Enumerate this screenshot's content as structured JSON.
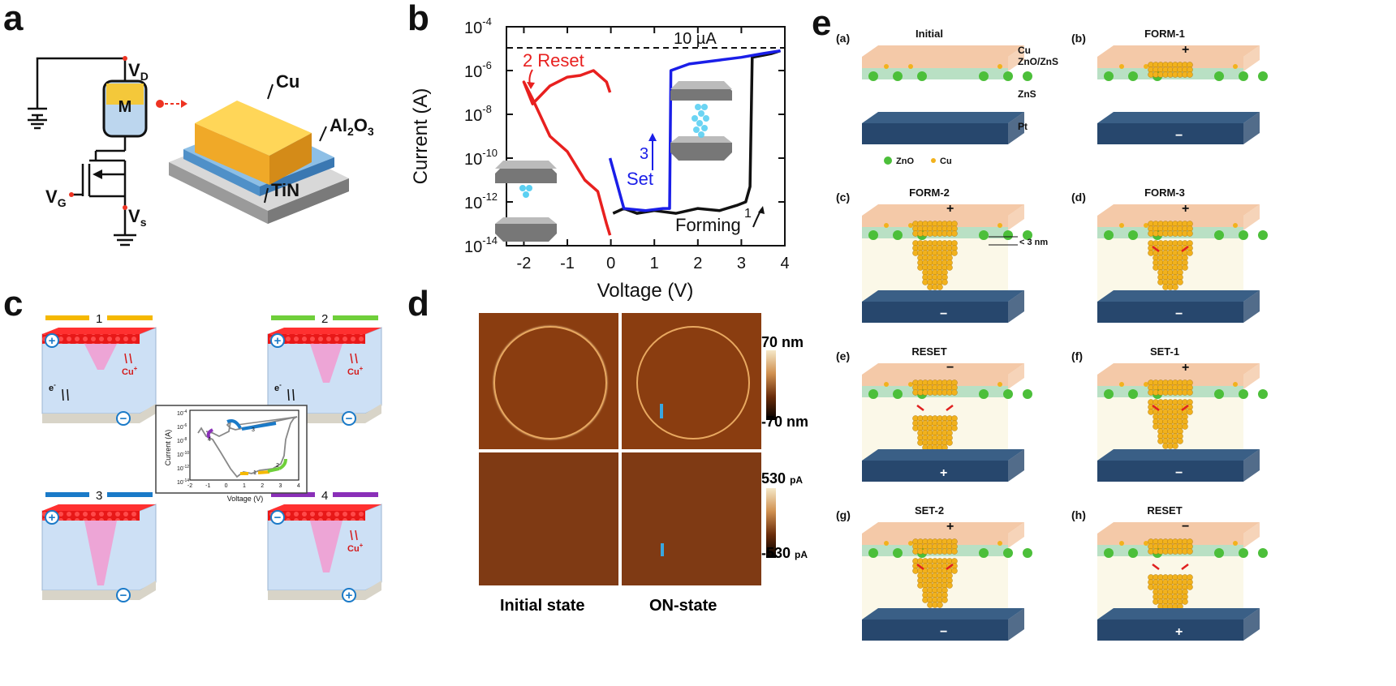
{
  "panels": {
    "a": "a",
    "b": "b",
    "c": "c",
    "d": "d",
    "e": "e"
  },
  "a": {
    "vd": "V",
    "vd_sub": "D",
    "vg": "V",
    "vg_sub": "G",
    "vs": "V",
    "vs_sub": "s",
    "m": "M",
    "cu": "Cu",
    "al": "Al",
    "al_sub": "2",
    "al_o": "O",
    "al_sub2": "3",
    "tin": "TiN"
  },
  "b": {
    "ylabel": "Current (A)",
    "xlabel": "Voltage (V)",
    "yticks": [
      "10",
      "10",
      "10",
      "10",
      "10",
      "10"
    ],
    "yexps": [
      "-4",
      "-6",
      "-8",
      "-10",
      "-12",
      "-14"
    ],
    "xticks": [
      "-2",
      "-1",
      "0",
      "1",
      "2",
      "3",
      "4"
    ],
    "compliance": "10 µA",
    "reset_num": "2",
    "reset": "Reset",
    "set_num": "3",
    "set": "Set",
    "forming_num": "1",
    "forming": "Forming"
  },
  "c": {
    "box1": "1",
    "box2": "2",
    "box3": "3",
    "box4": "4",
    "cu_plus": "Cu",
    "cu_plus_sup": "+",
    "e_minus": "e",
    "e_minus_sup": "-",
    "cu_plus2": "Cu",
    "cu_plus2_sup": "+",
    "cu_plus3": "Cu",
    "cu_plus3_sup": "+",
    "inset_ylabel": "Current (A)",
    "inset_xlabel": "Voltage (V)",
    "inset_xticks": [
      "-2",
      "-1",
      "0",
      "1",
      "2",
      "3",
      "4"
    ],
    "inset_yexps": [
      "-4",
      "-6",
      "-8",
      "-10",
      "-12",
      "-14"
    ],
    "inset_ytick": "10",
    "inset_nums": [
      "1",
      "2",
      "3",
      "4"
    ]
  },
  "d": {
    "scale_top_max": "70 nm",
    "scale_top_min": "-70 nm",
    "scale_bot_max": "530",
    "scale_bot_max_unit": "pA",
    "scale_bot_min": "-530",
    "scale_bot_min_unit": "pA",
    "cap_left": "Initial state",
    "cap_right": "ON-state"
  },
  "e": {
    "sub": [
      {
        "tag": "(a)",
        "title": "Initial",
        "top": "",
        "bot": ""
      },
      {
        "tag": "(b)",
        "title": "FORM-1",
        "top": "+",
        "bot": "−"
      },
      {
        "tag": "(c)",
        "title": "FORM-2",
        "top": "+",
        "bot": "−"
      },
      {
        "tag": "(d)",
        "title": "FORM-3",
        "top": "+",
        "bot": "−"
      },
      {
        "tag": "(e)",
        "title": "RESET",
        "top": "−",
        "bot": "+"
      },
      {
        "tag": "(f)",
        "title": "SET-1",
        "top": "+",
        "bot": "−"
      },
      {
        "tag": "(g)",
        "title": "SET-2",
        "top": "+",
        "bot": "−"
      },
      {
        "tag": "(h)",
        "title": "RESET",
        "top": "−",
        "bot": "+"
      }
    ],
    "cu": "Cu",
    "znozns": "ZnO/ZnS",
    "zns": "ZnS",
    "pt": "Pt",
    "leg_zno": "ZnO",
    "leg_cu": "Cu",
    "gap": "< 3 nm"
  },
  "chart_data": {
    "type": "line",
    "title": "",
    "xlabel": "Voltage (V)",
    "ylabel": "Current (A)",
    "xlim": [
      -2.4,
      4
    ],
    "ylim": [
      "1e-14",
      "1e-4"
    ],
    "yscale": "log",
    "compliance_A": 1e-05,
    "series": [
      {
        "name": "Forming",
        "color": "#111111",
        "x": [
          0.05,
          0.3,
          0.6,
          1.0,
          1.5,
          2.0,
          2.5,
          2.9,
          3.1,
          3.2,
          3.25,
          3.5,
          3.7,
          3.9
        ],
        "y": [
          3e-13,
          5e-13,
          3e-13,
          4e-13,
          3e-13,
          5e-13,
          4e-13,
          7e-13,
          1e-12,
          5e-12,
          4e-06,
          5e-06,
          6e-06,
          8e-06
        ]
      },
      {
        "name": "Reset",
        "color": "#e8201f",
        "x": [
          -0.02,
          -0.1,
          -0.4,
          -0.7,
          -1.0,
          -1.4,
          -1.8,
          -2.0,
          -1.8,
          -1.4,
          -1.0,
          -0.6,
          -0.3,
          -0.1,
          -0.02
        ],
        "y": [
          1e-07,
          3e-07,
          1e-06,
          6e-07,
          5e-07,
          2e-07,
          3e-08,
          3e-07,
          5e-08,
          1e-09,
          2e-10,
          1e-11,
          3e-12,
          1e-13,
          3e-14
        ]
      },
      {
        "name": "Set",
        "color": "#1a1ee8",
        "x": [
          -0.02,
          0.3,
          0.8,
          1.2,
          1.35,
          1.38,
          1.8,
          2.5,
          3.0,
          3.5,
          3.9
        ],
        "y": [
          1e-10,
          5e-13,
          4e-13,
          5e-13,
          5e-13,
          1e-06,
          2e-06,
          3e-06,
          4e-06,
          6e-06,
          8e-06
        ]
      }
    ]
  }
}
